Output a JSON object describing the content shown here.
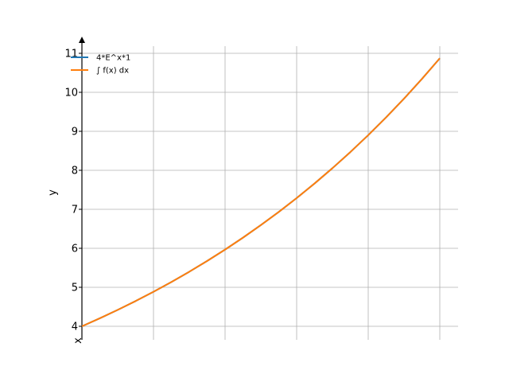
{
  "chart_data": {
    "type": "line",
    "xlabel": "x",
    "ylabel": "y",
    "xlim": [
      0,
      1
    ],
    "ylim": [
      3.9,
      11.2
    ],
    "x_ticks": [
      0,
      0.2,
      0.4,
      0.6,
      0.8,
      1.0
    ],
    "y_ticks": [
      4,
      5,
      6,
      7,
      8,
      9,
      10,
      11
    ],
    "y_tick_labels": [
      "4",
      "5",
      "6",
      "7",
      "8",
      "9",
      "10",
      "11"
    ],
    "grid": true,
    "legend_position": "top-left",
    "series": [
      {
        "name": "4*E^x*1",
        "color": "#1f77b4",
        "x": [
          0,
          0.05,
          0.1,
          0.15,
          0.2,
          0.25,
          0.3,
          0.35,
          0.4,
          0.45,
          0.5,
          0.55,
          0.6,
          0.65,
          0.7,
          0.75,
          0.8,
          0.85,
          0.9,
          0.95,
          1.0
        ],
        "y": [
          4.0,
          4.205,
          4.421,
          4.647,
          4.886,
          5.136,
          5.399,
          5.676,
          5.967,
          6.273,
          6.595,
          6.933,
          7.288,
          7.662,
          8.055,
          8.468,
          8.902,
          9.358,
          9.838,
          10.343,
          10.873
        ]
      },
      {
        "name": "∫ f(x) dx",
        "color": "#ff7f0e",
        "x": [
          0,
          0.05,
          0.1,
          0.15,
          0.2,
          0.25,
          0.3,
          0.35,
          0.4,
          0.45,
          0.5,
          0.55,
          0.6,
          0.65,
          0.7,
          0.75,
          0.8,
          0.85,
          0.9,
          0.95,
          1.0
        ],
        "y": [
          4.0,
          4.205,
          4.421,
          4.647,
          4.886,
          5.136,
          5.399,
          5.676,
          5.967,
          6.273,
          6.595,
          6.933,
          7.288,
          7.662,
          8.055,
          8.468,
          8.902,
          9.358,
          9.838,
          10.343,
          10.873
        ]
      }
    ]
  }
}
